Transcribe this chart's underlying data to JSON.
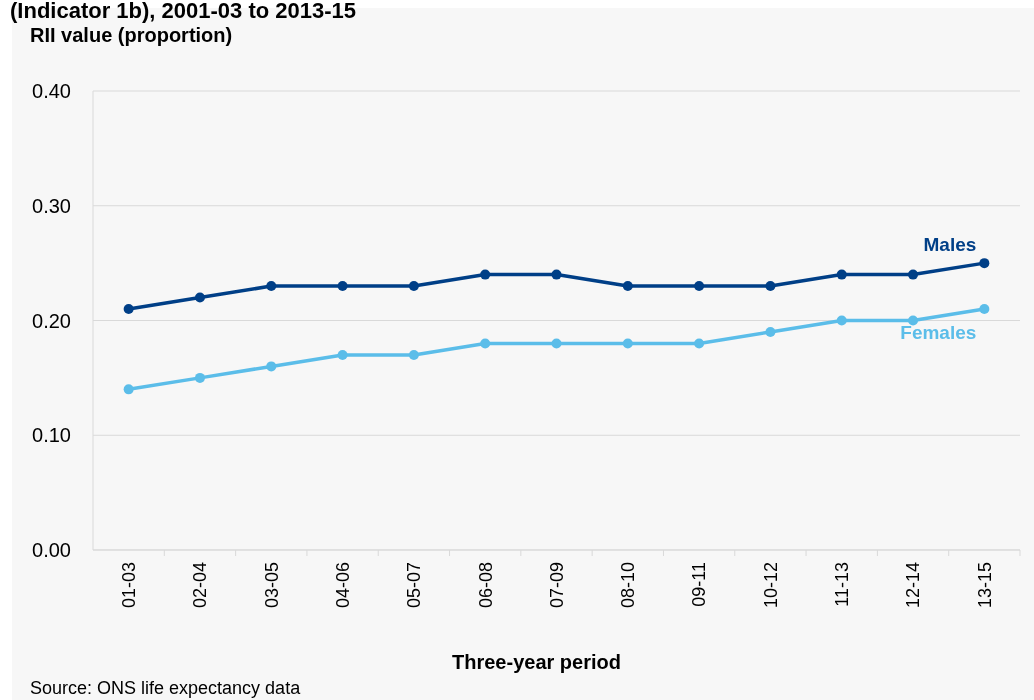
{
  "chart_data": {
    "type": "line",
    "title": "(Indicator 1b), 2001-03 to 2013-15",
    "ylabel": "RII value (proportion)",
    "xlabel": "Three-year period",
    "categories": [
      "01-03",
      "02-04",
      "03-05",
      "04-06",
      "05-07",
      "06-08",
      "07-09",
      "08-10",
      "09-11",
      "10-12",
      "11-13",
      "12-14",
      "13-15"
    ],
    "series": [
      {
        "name": "Males",
        "color": "#003f87",
        "values": [
          0.21,
          0.22,
          0.23,
          0.23,
          0.23,
          0.24,
          0.24,
          0.23,
          0.23,
          0.23,
          0.24,
          0.24,
          0.25
        ]
      },
      {
        "name": "Females",
        "color": "#5bbde9",
        "values": [
          0.14,
          0.15,
          0.16,
          0.17,
          0.17,
          0.18,
          0.18,
          0.18,
          0.18,
          0.19,
          0.2,
          0.2,
          0.21
        ]
      }
    ],
    "ylim": [
      0,
      0.4
    ],
    "yticks": [
      {
        "value": 0,
        "label": "0.00"
      },
      {
        "value": 0.1,
        "label": "0.10"
      },
      {
        "value": 0.2,
        "label": "0.20"
      },
      {
        "value": 0.3,
        "label": "0.30"
      },
      {
        "value": 0.4,
        "label": "0.40"
      }
    ],
    "grid": "y",
    "legend": false,
    "marker": "circle",
    "line_style": "solid",
    "annotations": [
      "Source: ONS life expectancy data"
    ]
  }
}
